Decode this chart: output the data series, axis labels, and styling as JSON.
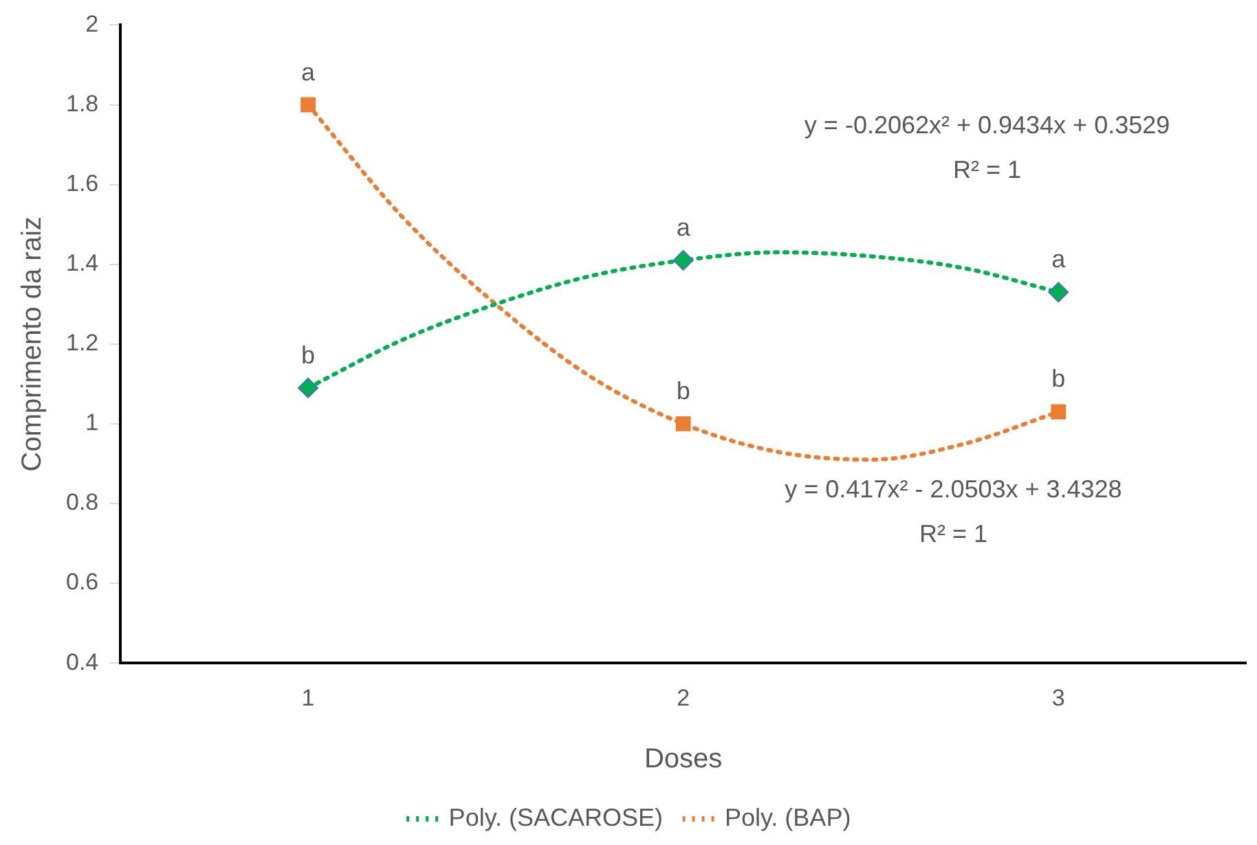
{
  "chart_data": {
    "type": "scatter",
    "xlabel": "Doses",
    "ylabel": "Comprimento da raiz",
    "xlim": [
      0.5,
      3.5
    ],
    "xticks": [
      1,
      2,
      3
    ],
    "ylim": [
      0.4,
      2
    ],
    "yticks": [
      0.4,
      0.6,
      0.8,
      1,
      1.2,
      1.4,
      1.6,
      1.8,
      2
    ],
    "grid": false,
    "legend": "bottom",
    "series": [
      {
        "color": "#00b050",
        "marker": "diamond",
        "x": [
          1,
          2,
          3
        ],
        "values": [
          1.09,
          1.41,
          1.33
        ]
      },
      {
        "color": "#ed7d31",
        "marker": "square",
        "x": [
          1,
          2,
          3
        ],
        "values": [
          1.8,
          1.0,
          1.03
        ]
      },
      {
        "type": "line",
        "name": "Poly. (SACAROSE)",
        "color": "#00b050",
        "line_style": "dotted",
        "marker": "none",
        "x": [
          1,
          1.25,
          1.5,
          1.75,
          2,
          2.25,
          2.5,
          2.75,
          3
        ],
        "values": [
          1.09,
          1.21,
          1.3,
          1.37,
          1.41,
          1.43,
          1.42,
          1.39,
          1.33
        ]
      },
      {
        "type": "line",
        "name": "Poly. (BAP)",
        "color": "#ed7d31",
        "line_style": "dotted",
        "marker": "none",
        "x": [
          1,
          1.25,
          1.5,
          1.75,
          2,
          2.25,
          2.5,
          2.75,
          3
        ],
        "values": [
          1.8,
          1.52,
          1.3,
          1.12,
          1.0,
          0.93,
          0.91,
          0.95,
          1.03
        ]
      }
    ],
    "annotations": [
      {
        "text": "a",
        "x": 1,
        "y": 1.8
      },
      {
        "text": "b",
        "x": 1,
        "y": 1.09
      },
      {
        "text": "a",
        "x": 2,
        "y": 1.41
      },
      {
        "text": "b",
        "x": 2,
        "y": 1.0
      },
      {
        "text": "a",
        "x": 3,
        "y": 1.33
      },
      {
        "text": "b",
        "x": 3,
        "y": 1.03
      },
      "y = -0.2062x² + 0.9434x + 0.3529",
      "R² = 1",
      "y = 0.417x² - 2.0503x + 3.4328",
      "R² = 1"
    ]
  }
}
